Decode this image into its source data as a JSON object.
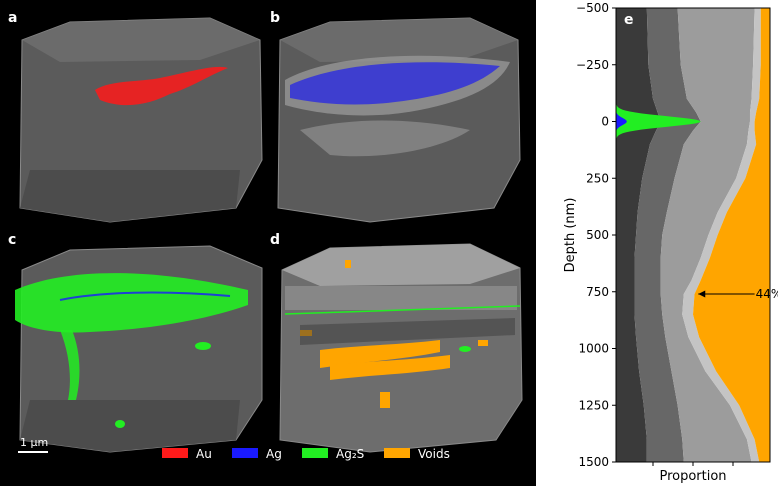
{
  "panels": {
    "a": "a",
    "b": "b",
    "c": "c",
    "d": "d",
    "e": "e"
  },
  "scalebar": {
    "label": "1 μm"
  },
  "legend": [
    {
      "name": "Au",
      "color": "#ff1a1a"
    },
    {
      "name": "Ag",
      "color": "#1a1aff"
    },
    {
      "name": "Ag₂S",
      "color": "#22ee22"
    },
    {
      "name": "Voids",
      "color": "#ffa500"
    }
  ],
  "colors": {
    "background": "#000000",
    "volume": "#5b5b5b",
    "layer_dark": "#3a3a3a",
    "layer_mid": "#676767",
    "layer_light": "#9c9c9c",
    "layer_pale": "#c4c4c4",
    "voids": "#ffa500"
  },
  "chart_data": {
    "type": "area",
    "ylabel": "Depth (nm)",
    "xlabel": "Proportion",
    "ylim": [
      -500,
      1500
    ],
    "yticks": [
      -500,
      -250,
      0,
      250,
      500,
      750,
      1000,
      1250,
      1500
    ],
    "ytick_labels": [
      "−500",
      "−250",
      "0",
      "250",
      "500",
      "750",
      "1000",
      "1250",
      "1500"
    ],
    "depth_inverted": true,
    "annotation": {
      "text": "44%",
      "depth": 760,
      "proportion": 0.56
    },
    "depth": [
      -500,
      -250,
      -100,
      -40,
      0,
      40,
      100,
      250,
      400,
      500,
      600,
      700,
      760,
      850,
      950,
      1100,
      1250,
      1400,
      1500
    ],
    "boundaries": [
      {
        "name": "layer1",
        "values": [
          0.2,
          0.21,
          0.24,
          0.27,
          0.29,
          0.26,
          0.22,
          0.17,
          0.14,
          0.13,
          0.12,
          0.12,
          0.12,
          0.12,
          0.13,
          0.15,
          0.18,
          0.2,
          0.2
        ]
      },
      {
        "name": "layer2",
        "values": [
          0.4,
          0.42,
          0.46,
          0.52,
          0.55,
          0.5,
          0.44,
          0.38,
          0.33,
          0.3,
          0.29,
          0.29,
          0.29,
          0.3,
          0.32,
          0.36,
          0.4,
          0.43,
          0.44
        ]
      },
      {
        "name": "layer3",
        "values": [
          0.9,
          0.89,
          0.88,
          0.87,
          0.87,
          0.86,
          0.85,
          0.78,
          0.66,
          0.6,
          0.55,
          0.49,
          0.44,
          0.43,
          0.47,
          0.58,
          0.74,
          0.85,
          0.88
        ]
      },
      {
        "name": "layer4",
        "values": [
          0.94,
          0.94,
          0.93,
          0.91,
          0.9,
          0.9,
          0.91,
          0.84,
          0.72,
          0.66,
          0.61,
          0.55,
          0.51,
          0.5,
          0.54,
          0.65,
          0.8,
          0.9,
          0.93
        ]
      }
    ],
    "series": [
      {
        "name": "Ag₂S",
        "peak_depth": 0,
        "half_width": 80,
        "amplitude": 0.55,
        "color": "#22ee22"
      },
      {
        "name": "Ag",
        "peak_depth": 0,
        "half_width": 55,
        "amplitude": 0.07,
        "color": "#1a1aff"
      }
    ]
  }
}
